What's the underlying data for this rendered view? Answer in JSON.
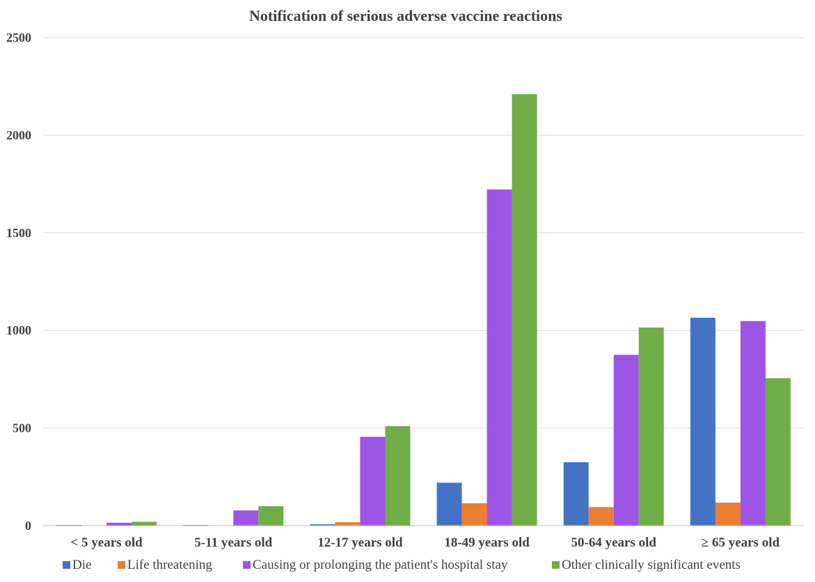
{
  "chart_data": {
    "type": "bar",
    "title": "Notification of serious adverse vaccine reactions",
    "xlabel": "",
    "ylabel": "",
    "ylim": [
      0,
      2500
    ],
    "yticks": [
      0,
      500,
      1000,
      1500,
      2000,
      2500
    ],
    "grid": true,
    "legend_position": "bottom",
    "categories": [
      "< 5 years old",
      "5-11 years old",
      "12-17 years old",
      "18-49 years old",
      "50-64 years old",
      "≥ 65 years old"
    ],
    "series": [
      {
        "name": "Die",
        "color": "#4472C4",
        "values": [
          2,
          1,
          7,
          220,
          325,
          1065
        ]
      },
      {
        "name": "Life threatening",
        "color": "#ED7D31",
        "values": [
          0,
          0,
          18,
          115,
          95,
          118
        ]
      },
      {
        "name": "Causing or prolonging the patient's hospital stay",
        "color": "#9D55E6",
        "values": [
          15,
          78,
          455,
          1722,
          875,
          1048
        ]
      },
      {
        "name": "Other clinically significant events",
        "color": "#70AD47",
        "values": [
          20,
          100,
          510,
          2210,
          1015,
          755
        ]
      }
    ]
  }
}
